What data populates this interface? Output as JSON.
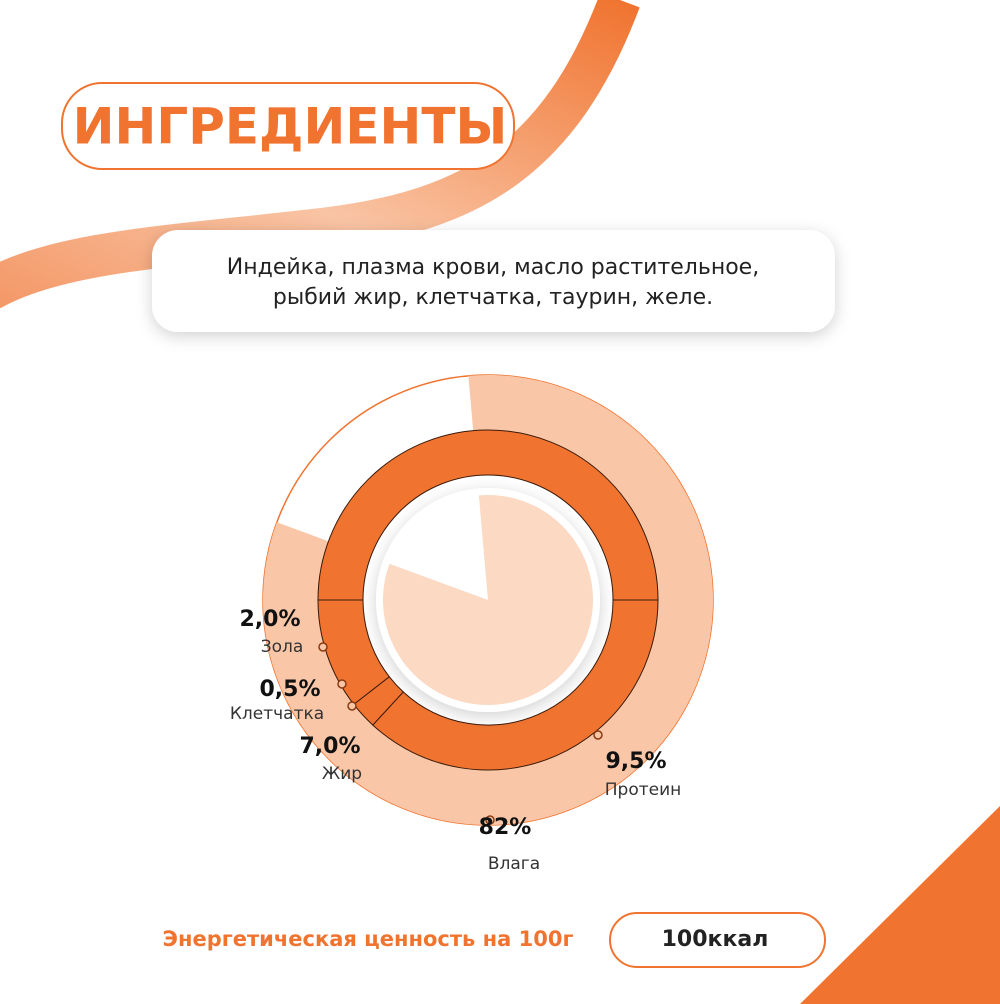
{
  "header": {
    "title": "ИНГРЕДИЕНТЫ"
  },
  "ingredients": [
    "Индейка, плазма крови, масло растительное,",
    "рыбий жир, клетчатка, таурин, желе."
  ],
  "chart_data": {
    "type": "donut",
    "categories": [
      "Влага",
      "Зола",
      "Клетчатка",
      "Жир",
      "Протеин"
    ],
    "values": [
      82,
      2.0,
      0.5,
      7.0,
      9.5
    ],
    "value_labels": [
      "82%",
      "2,0%",
      "0,5%",
      "7,0%",
      "9,5%"
    ],
    "colors": [
      "#f9c7a8",
      "#f07430",
      "#f07430",
      "#f07430",
      "#f07430"
    ]
  },
  "footer": {
    "label": "Энергетическая ценность на 100г",
    "value": "100ккал"
  }
}
